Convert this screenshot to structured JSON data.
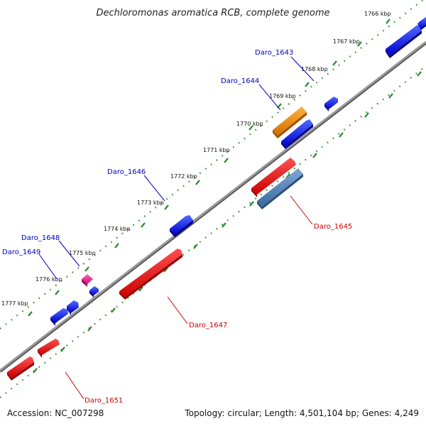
{
  "title": "Dechloromonas aromatica RCB, complete genome",
  "footer": {
    "accession": "Accession: NC_007298",
    "summary": "Topology: circular; Length: 4,501,104 bp; Genes: 4,249"
  },
  "colors": {
    "forward_strand": "#0000ee",
    "reverse_strand": "#ee0000",
    "orange_gene": "#f08c00",
    "steel_gene": "#4a7fb5",
    "pink_gene": "#ee3399",
    "backbone": "#808080",
    "tick": "#2a8a2a",
    "forward_label": "#0000bb",
    "reverse_label": "#cc0000"
  },
  "ruler": {
    "unit": "kbp",
    "labels": [
      "1766 kbp",
      "1767 kbp",
      "1768 kbp",
      "1769 kbp",
      "1770 kbp",
      "1771 kbp",
      "1772 kbp",
      "1773 kbp",
      "1774 kbp",
      "1775 kbp",
      "1776 kbp",
      "1777 kbp"
    ]
  },
  "gene_labels": [
    {
      "name": "Daro_1643",
      "strand": "forward"
    },
    {
      "name": "Daro_1644",
      "strand": "forward"
    },
    {
      "name": "Daro_1645",
      "strand": "reverse"
    },
    {
      "name": "Daro_1646",
      "strand": "forward"
    },
    {
      "name": "Daro_1647",
      "strand": "reverse"
    },
    {
      "name": "Daro_1648",
      "strand": "forward"
    },
    {
      "name": "Daro_1649",
      "strand": "forward"
    },
    {
      "name": "Daro_1651",
      "strand": "reverse"
    }
  ],
  "features": [
    {
      "id": "gene-top-right-1",
      "color": "blue"
    },
    {
      "id": "gene-top-right-2",
      "color": "blue"
    },
    {
      "id": "gene-1643",
      "color": "blue"
    },
    {
      "id": "gene-orange",
      "color": "orange"
    },
    {
      "id": "gene-1644",
      "color": "blue"
    },
    {
      "id": "gene-1645-red",
      "color": "red"
    },
    {
      "id": "gene-1645-steel",
      "color": "steel"
    },
    {
      "id": "gene-1646",
      "color": "blue"
    },
    {
      "id": "gene-1647",
      "color": "red"
    },
    {
      "id": "gene-1648-pink",
      "color": "pink"
    },
    {
      "id": "gene-1648",
      "color": "blue"
    },
    {
      "id": "gene-1649-a",
      "color": "blue"
    },
    {
      "id": "gene-1649-b",
      "color": "blue"
    },
    {
      "id": "gene-1651-a",
      "color": "red"
    },
    {
      "id": "gene-1651-b",
      "color": "red"
    }
  ]
}
